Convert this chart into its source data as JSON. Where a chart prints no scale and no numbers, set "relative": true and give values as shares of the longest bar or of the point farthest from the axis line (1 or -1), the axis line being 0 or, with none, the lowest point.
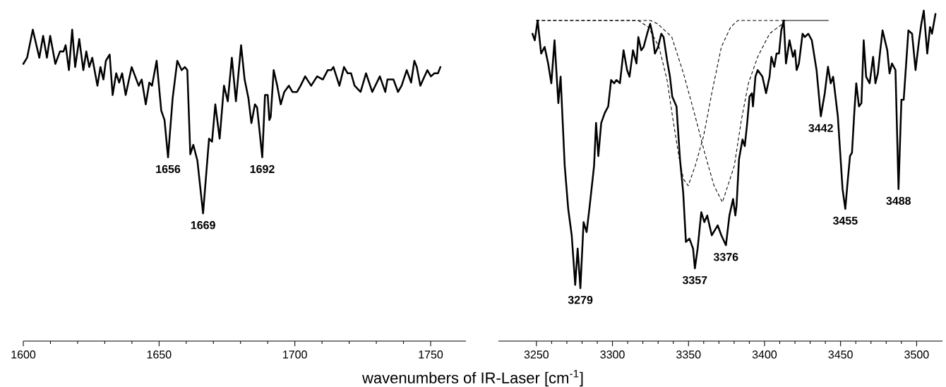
{
  "chart_data": [
    {
      "type": "line",
      "relative": true,
      "xlim": [
        1600,
        1763
      ],
      "xticks": [
        1600,
        1650,
        1700,
        1750
      ],
      "xlabel": "wavenumbers of IR-Laser [cm$^{-1}$]",
      "color": "#000000",
      "x": [
        1600.0,
        1601.4,
        1603.5,
        1605.9,
        1607.3,
        1608.7,
        1609.9,
        1611.8,
        1613.5,
        1614.8,
        1615.6,
        1616.8,
        1618.0,
        1619.1,
        1620.6,
        1622.1,
        1623.2,
        1624.3,
        1625.4,
        1627.3,
        1628.4,
        1629.5,
        1630.4,
        1631.8,
        1632.9,
        1634.2,
        1635.3,
        1636.4,
        1637.7,
        1639.9,
        1642.5,
        1643.6,
        1645.1,
        1646.4,
        1647.4,
        1649.1,
        1650.8,
        1652.0,
        1653.3,
        1655.0,
        1656.7,
        1658.3,
        1659.5,
        1660.4,
        1661.5,
        1662.6,
        1664.1,
        1666.2,
        1668.4,
        1669.5,
        1670.7,
        1672.3,
        1673.9,
        1675.3,
        1676.8,
        1678.3,
        1680.2,
        1681.5,
        1682.9,
        1684.0,
        1685.3,
        1686.1,
        1688.0,
        1689.0,
        1690.0,
        1690.6,
        1691.1,
        1692.2,
        1693.5,
        1694.8,
        1696.1,
        1697.8,
        1699.1,
        1700.8,
        1702.1,
        1703.8,
        1706.0,
        1708.2,
        1710.3,
        1712.1,
        1713.4,
        1714.2,
        1716.4,
        1718.1,
        1719.4,
        1720.7,
        1722.0,
        1724.2,
        1726.2,
        1728.5,
        1731.3,
        1733.3,
        1734.1,
        1736.3,
        1738.0,
        1739.3,
        1741.2,
        1742.8,
        1744.0,
        1744.9,
        1746.2,
        1748.8,
        1750.1,
        1751.4,
        1752.7,
        1753.6
      ],
      "values": [
        0.89,
        0.91,
        1.0,
        0.91,
        0.98,
        0.91,
        0.98,
        0.89,
        0.93,
        0.93,
        0.95,
        0.87,
        1.0,
        0.88,
        0.97,
        0.87,
        0.93,
        0.88,
        0.91,
        0.82,
        0.88,
        0.84,
        0.9,
        0.92,
        0.79,
        0.86,
        0.83,
        0.86,
        0.79,
        0.88,
        0.82,
        0.84,
        0.76,
        0.83,
        0.82,
        0.9,
        0.74,
        0.71,
        0.59,
        0.78,
        0.9,
        0.87,
        0.88,
        0.87,
        0.6,
        0.63,
        0.58,
        0.41,
        0.65,
        0.64,
        0.76,
        0.65,
        0.82,
        0.77,
        0.91,
        0.77,
        0.95,
        0.84,
        0.78,
        0.7,
        0.76,
        0.75,
        0.59,
        0.79,
        0.79,
        0.71,
        0.72,
        0.87,
        0.82,
        0.76,
        0.8,
        0.82,
        0.8,
        0.8,
        0.82,
        0.85,
        0.82,
        0.85,
        0.84,
        0.87,
        0.87,
        0.88,
        0.82,
        0.88,
        0.86,
        0.86,
        0.82,
        0.8,
        0.86,
        0.8,
        0.85,
        0.8,
        0.84,
        0.84,
        0.8,
        0.82,
        0.87,
        0.83,
        0.9,
        0.88,
        0.82,
        0.87,
        0.85,
        0.86,
        0.86,
        0.88
      ],
      "annotations": [
        {
          "text": "1656",
          "x": 1653.3,
          "y": 0.59
        },
        {
          "text": "1669",
          "x": 1666.2,
          "y": 0.41
        },
        {
          "text": "1692",
          "x": 1688.0,
          "y": 0.59
        }
      ]
    },
    {
      "type": "line",
      "relative": true,
      "xlim": [
        3225,
        3517
      ],
      "xticks": [
        3250,
        3300,
        3350,
        3400,
        3450,
        3500
      ],
      "series": [
        {
          "color": "#000000",
          "x": [
            3247.4,
            3248.9,
            3250.8,
            3253.1,
            3255.4,
            3257.7,
            3259.8,
            3261.9,
            3264.4,
            3265.9,
            3268.6,
            3270.9,
            3273.2,
            3275.5,
            3277.1,
            3278.9,
            3281.0,
            3283.0,
            3284.8,
            3287.9,
            3289.2,
            3290.7,
            3292.6,
            3294.9,
            3297.2,
            3299.1,
            3301.1,
            3302.6,
            3304.9,
            3307.3,
            3309.6,
            3311.2,
            3313.5,
            3315.8,
            3317.0,
            3318.9,
            3320.5,
            3322.8,
            3324.8,
            3326.3,
            3327.9,
            3330.0,
            3332.1,
            3333.6,
            3335.9,
            3337.8,
            3339.3,
            3342.1,
            3344.4,
            3346.5,
            3348.3,
            3350.6,
            3353.0,
            3354.2,
            3356.0,
            3358.4,
            3360.4,
            3362.3,
            3365.3,
            3369.2,
            3371.6,
            3374.6,
            3376.9,
            3379.3,
            3380.8,
            3381.6,
            3383.2,
            3385.5,
            3387.0,
            3388.6,
            3390.1,
            3391.7,
            3392.4,
            3394.0,
            3395.5,
            3398.6,
            3401.0,
            3403.3,
            3404.5,
            3406.4,
            3407.9,
            3409.5,
            3411.0,
            3412.6,
            3414.1,
            3416.4,
            3418.7,
            3420.0,
            3421.1,
            3422.6,
            3425.0,
            3426.5,
            3428.8,
            3431.1,
            3434.2,
            3437.0,
            3439.6,
            3441.7,
            3443.5,
            3445.1,
            3448.2,
            3451.3,
            3453.1,
            3454.4,
            3456.2,
            3457.5,
            3459.0,
            3460.3,
            3462.1,
            3463.7,
            3465.2,
            3466.8,
            3469.1,
            3471.4,
            3472.9,
            3474.5,
            3476.1,
            3477.6,
            3480.7,
            3482.2,
            3483.8,
            3486.1,
            3488.1,
            3490.0,
            3491.5,
            3494.6,
            3497.0,
            3499.3,
            3501.6,
            3503.1,
            3504.7,
            3507.0,
            3508.8,
            3510.1,
            3512.4
          ],
          "values": [
            0.93,
            0.91,
            0.97,
            0.87,
            0.89,
            0.84,
            0.78,
            0.91,
            0.72,
            0.8,
            0.53,
            0.4,
            0.32,
            0.17,
            0.28,
            0.16,
            0.36,
            0.33,
            0.4,
            0.53,
            0.66,
            0.56,
            0.66,
            0.69,
            0.71,
            0.79,
            0.78,
            0.79,
            0.78,
            0.88,
            0.82,
            0.8,
            0.88,
            0.84,
            0.92,
            0.88,
            0.89,
            0.93,
            0.96,
            0.93,
            0.87,
            0.89,
            0.93,
            0.92,
            0.85,
            0.8,
            0.74,
            0.71,
            0.55,
            0.45,
            0.3,
            0.31,
            0.28,
            0.22,
            0.28,
            0.39,
            0.36,
            0.38,
            0.32,
            0.35,
            0.32,
            0.29,
            0.38,
            0.43,
            0.38,
            0.41,
            0.55,
            0.61,
            0.59,
            0.66,
            0.74,
            0.75,
            0.71,
            0.8,
            0.82,
            0.8,
            0.75,
            0.8,
            0.86,
            0.83,
            0.87,
            0.87,
            0.94,
            0.97,
            0.84,
            0.91,
            0.86,
            0.88,
            0.82,
            0.84,
            0.93,
            0.92,
            0.93,
            0.91,
            0.82,
            0.68,
            0.75,
            0.83,
            0.78,
            0.8,
            0.68,
            0.46,
            0.4,
            0.47,
            0.56,
            0.57,
            0.69,
            0.78,
            0.71,
            0.72,
            0.91,
            0.8,
            0.78,
            0.86,
            0.78,
            0.81,
            0.88,
            0.94,
            0.88,
            0.81,
            0.84,
            0.82,
            0.46,
            0.73,
            0.73,
            0.94,
            0.93,
            0.82,
            0.91,
            0.96,
            1.0,
            0.87,
            0.95,
            0.93,
            0.99
          ]
        },
        {
          "color": "#000000",
          "line_style": "dashed",
          "x": [
            3250,
            3317,
            3323.6,
            3330.6,
            3335.9,
            3339.8,
            3343.6,
            3346.7,
            3349.8,
            3354.4,
            3359.9,
            3365.3,
            3371.6,
            3377.7,
            3382.4,
            3413
          ],
          "values": [
            0.97,
            0.97,
            0.95,
            0.89,
            0.79,
            0.67,
            0.56,
            0.49,
            0.47,
            0.53,
            0.62,
            0.75,
            0.89,
            0.95,
            0.97,
            0.97
          ]
        },
        {
          "color": "#000000",
          "line_style": "dashed",
          "x": [
            3250,
            3325,
            3329.7,
            3339.0,
            3346.7,
            3354.4,
            3360.6,
            3366.8,
            3372.3,
            3380.1,
            3384.8,
            3389.4,
            3395.5,
            3403.3,
            3411.8,
            3413.3
          ],
          "values": [
            0.97,
            0.97,
            0.96,
            0.92,
            0.81,
            0.68,
            0.57,
            0.47,
            0.42,
            0.53,
            0.67,
            0.78,
            0.86,
            0.93,
            0.96,
            0.97
          ]
        },
        {
          "color": "#000000",
          "line_style": "solid",
          "x": [
            3413,
            3442
          ],
          "values": [
            0.97,
            0.97
          ]
        }
      ],
      "annotations": [
        {
          "text": "3279",
          "x": 3278.9,
          "y": 0.16
        },
        {
          "text": "3357",
          "x": 3354.2,
          "y": 0.22
        },
        {
          "text": "3376",
          "x": 3374.6,
          "y": 0.29
        },
        {
          "text": "3442",
          "x": 3437.0,
          "y": 0.68
        },
        {
          "text": "3455",
          "x": 3453.1,
          "y": 0.4
        },
        {
          "text": "3488",
          "x": 3488.1,
          "y": 0.46
        }
      ]
    }
  ]
}
